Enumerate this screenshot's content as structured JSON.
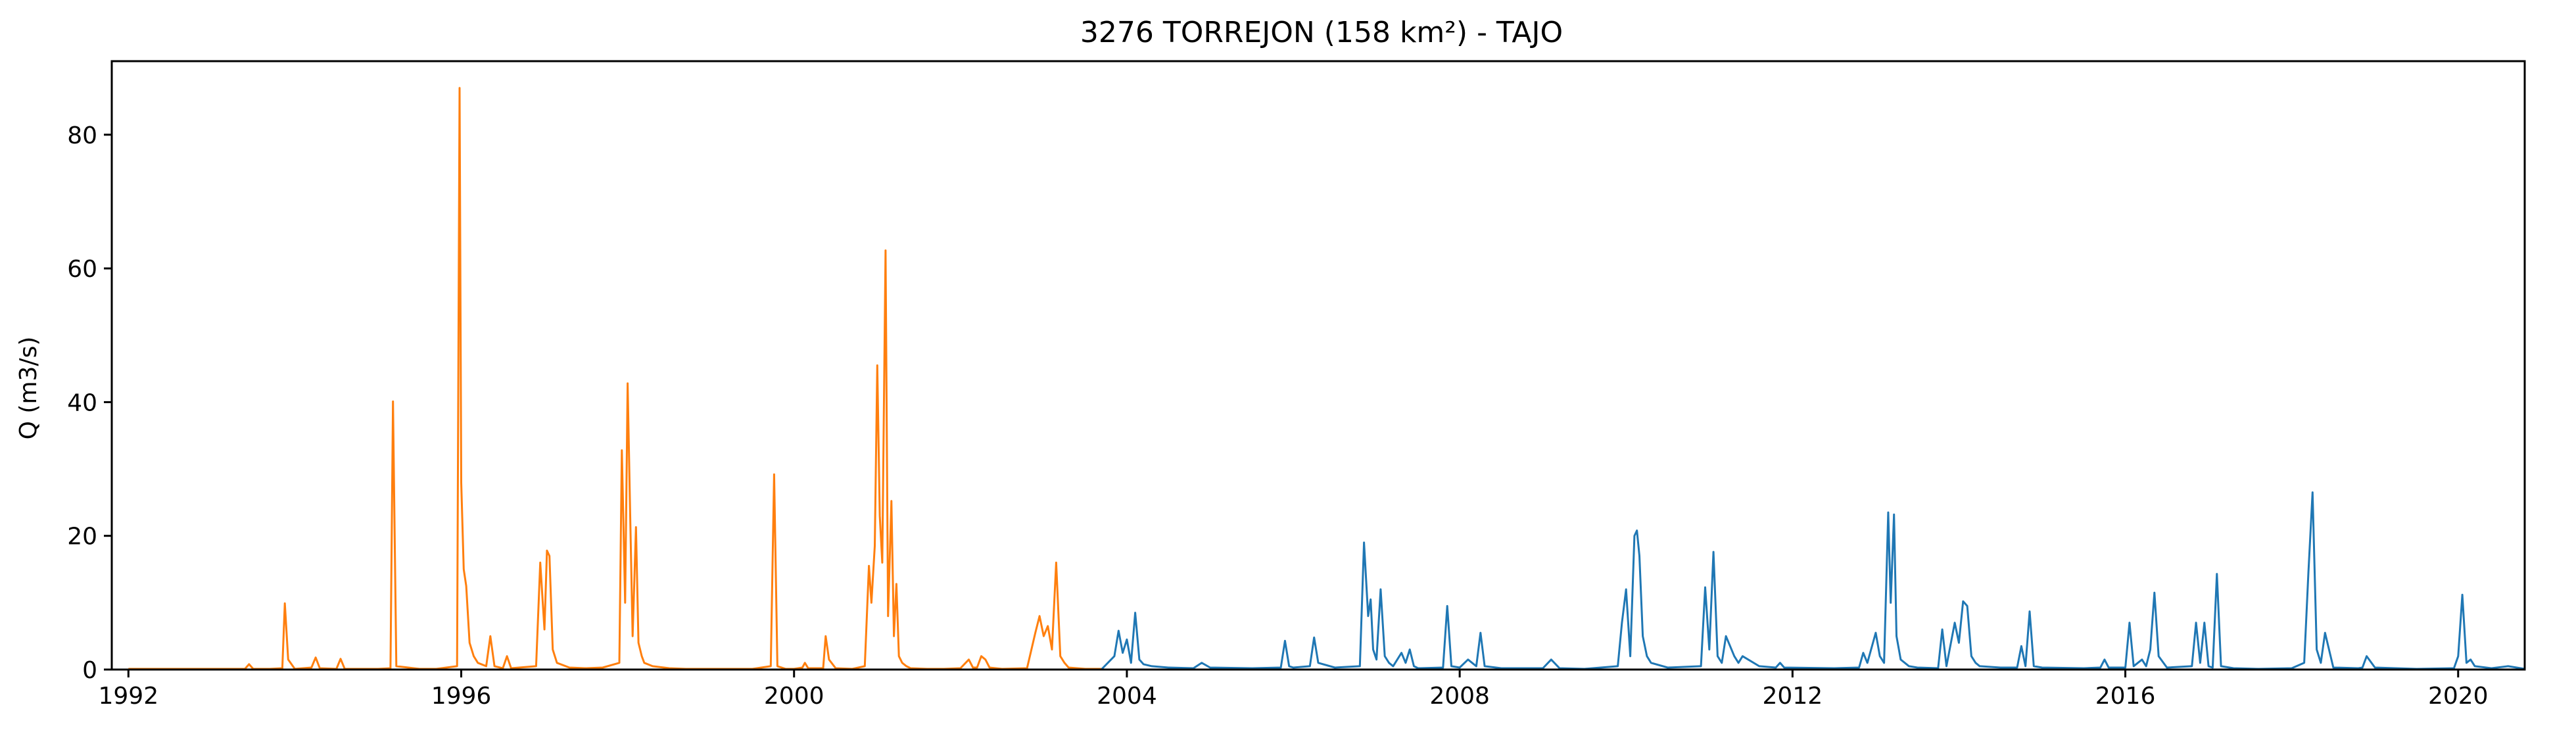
{
  "chart_data": {
    "type": "line",
    "title": "3276 TORREJON (158 km²) - TAJO",
    "xlabel": "",
    "ylabel": "Q (m3/s)",
    "xlim": [
      1991.8,
      2020.8
    ],
    "ylim": [
      0,
      91
    ],
    "xticks": [
      1992,
      1996,
      2000,
      2004,
      2008,
      2012,
      2016,
      2020
    ],
    "yticks": [
      0,
      20,
      40,
      60,
      80
    ],
    "grid": false,
    "legend": "none",
    "series": [
      {
        "color": "#ff7f0e",
        "x": [
          1992.0,
          1993.4,
          1993.45,
          1993.5,
          1993.7,
          1993.85,
          1993.88,
          1993.92,
          1994.0,
          1994.2,
          1994.25,
          1994.3,
          1994.5,
          1994.55,
          1994.6,
          1995.0,
          1995.15,
          1995.18,
          1995.22,
          1995.5,
          1995.7,
          1995.95,
          1995.98,
          1996.0,
          1996.03,
          1996.06,
          1996.1,
          1996.15,
          1996.2,
          1996.3,
          1996.35,
          1996.4,
          1996.5,
          1996.55,
          1996.6,
          1996.9,
          1996.95,
          1997.0,
          1997.03,
          1997.06,
          1997.1,
          1997.15,
          1997.3,
          1997.5,
          1997.7,
          1997.9,
          1997.93,
          1997.97,
          1998.0,
          1998.03,
          1998.06,
          1998.1,
          1998.13,
          1998.17,
          1998.2,
          1998.3,
          1998.5,
          1998.7,
          1999.0,
          1999.5,
          1999.72,
          1999.76,
          1999.8,
          1999.9,
          2000.0,
          2000.1,
          2000.13,
          2000.17,
          2000.35,
          2000.38,
          2000.42,
          2000.5,
          2000.7,
          2000.85,
          2000.9,
          2000.93,
          2000.97,
          2001.0,
          2001.03,
          2001.06,
          2001.1,
          2001.13,
          2001.17,
          2001.2,
          2001.23,
          2001.26,
          2001.3,
          2001.35,
          2001.4,
          2001.6,
          2001.8,
          2002.0,
          2002.1,
          2002.15,
          2002.2,
          2002.25,
          2002.3,
          2002.35,
          2002.5,
          2002.8,
          2002.9,
          2002.95,
          2003.0,
          2003.05,
          2003.1,
          2003.15,
          2003.2,
          2003.25,
          2003.3,
          2003.5,
          2003.7
        ],
        "values": [
          0.1,
          0.1,
          0.8,
          0.1,
          0.1,
          0.2,
          9.9,
          1.5,
          0.1,
          0.3,
          1.8,
          0.2,
          0.1,
          1.6,
          0.1,
          0.1,
          0.2,
          40.1,
          0.5,
          0.1,
          0.1,
          0.5,
          87.0,
          28.0,
          15.0,
          12.5,
          4.0,
          2.0,
          1.0,
          0.5,
          5.0,
          0.5,
          0.2,
          2.0,
          0.2,
          0.5,
          16.0,
          6.0,
          17.8,
          17.0,
          3.0,
          1.0,
          0.3,
          0.2,
          0.3,
          1.0,
          32.8,
          10.0,
          42.8,
          23.5,
          5.0,
          21.3,
          4.0,
          2.0,
          1.0,
          0.5,
          0.2,
          0.1,
          0.1,
          0.1,
          0.5,
          29.2,
          0.5,
          0.1,
          0.1,
          0.3,
          1.0,
          0.2,
          0.2,
          5.0,
          1.5,
          0.2,
          0.1,
          0.5,
          15.5,
          10.0,
          18.5,
          45.5,
          23.0,
          16.0,
          62.7,
          8.0,
          25.2,
          5.0,
          12.8,
          2.0,
          1.0,
          0.5,
          0.2,
          0.1,
          0.1,
          0.2,
          1.5,
          0.3,
          0.3,
          2.0,
          1.5,
          0.3,
          0.1,
          0.2,
          5.5,
          8.0,
          5.0,
          6.5,
          3.0,
          16.0,
          2.0,
          1.0,
          0.3,
          0.1,
          0.1
        ]
      },
      {
        "color": "#1f77b4",
        "x": [
          2003.7,
          2003.85,
          2003.9,
          2003.95,
          2004.0,
          2004.05,
          2004.1,
          2004.15,
          2004.2,
          2004.3,
          2004.5,
          2004.8,
          2004.9,
          2005.0,
          2005.5,
          2005.85,
          2005.9,
          2005.95,
          2006.0,
          2006.2,
          2006.25,
          2006.3,
          2006.5,
          2006.8,
          2006.85,
          2006.9,
          2006.93,
          2006.96,
          2007.0,
          2007.05,
          2007.1,
          2007.15,
          2007.2,
          2007.3,
          2007.35,
          2007.4,
          2007.45,
          2007.5,
          2007.8,
          2007.85,
          2007.9,
          2008.0,
          2008.1,
          2008.2,
          2008.25,
          2008.3,
          2008.5,
          2009.0,
          2009.1,
          2009.2,
          2009.5,
          2009.9,
          2009.95,
          2010.0,
          2010.05,
          2010.1,
          2010.13,
          2010.16,
          2010.2,
          2010.25,
          2010.3,
          2010.5,
          2010.9,
          2010.95,
          2011.0,
          2011.05,
          2011.1,
          2011.15,
          2011.2,
          2011.3,
          2011.35,
          2011.4,
          2011.6,
          2011.8,
          2011.85,
          2011.9,
          2012.5,
          2012.8,
          2012.85,
          2012.9,
          2013.0,
          2013.05,
          2013.1,
          2013.15,
          2013.18,
          2013.22,
          2013.25,
          2013.3,
          2013.4,
          2013.5,
          2013.75,
          2013.8,
          2013.85,
          2013.95,
          2014.0,
          2014.05,
          2014.1,
          2014.15,
          2014.2,
          2014.25,
          2014.5,
          2014.7,
          2014.75,
          2014.8,
          2014.85,
          2014.9,
          2015.0,
          2015.5,
          2015.7,
          2015.75,
          2015.8,
          2016.0,
          2016.05,
          2016.1,
          2016.2,
          2016.25,
          2016.3,
          2016.35,
          2016.4,
          2016.5,
          2016.8,
          2016.85,
          2016.9,
          2016.95,
          2017.0,
          2017.05,
          2017.1,
          2017.15,
          2017.3,
          2017.6,
          2018.0,
          2018.15,
          2018.2,
          2018.25,
          2018.3,
          2018.35,
          2018.4,
          2018.5,
          2018.8,
          2018.85,
          2018.9,
          2019.0,
          2019.5,
          2019.95,
          2020.0,
          2020.05,
          2020.1,
          2020.15,
          2020.2,
          2020.4,
          2020.6,
          2020.8
        ],
        "values": [
          0.1,
          2.0,
          5.8,
          2.5,
          4.5,
          1.0,
          8.5,
          1.5,
          0.8,
          0.5,
          0.3,
          0.2,
          1.0,
          0.3,
          0.2,
          0.3,
          4.3,
          0.5,
          0.3,
          0.5,
          4.8,
          1.0,
          0.3,
          0.5,
          19.0,
          8.0,
          10.5,
          3.0,
          1.5,
          12.0,
          2.0,
          1.0,
          0.5,
          2.5,
          1.0,
          3.0,
          0.5,
          0.2,
          0.3,
          9.5,
          0.5,
          0.3,
          1.5,
          0.5,
          5.5,
          0.5,
          0.2,
          0.2,
          1.5,
          0.2,
          0.1,
          0.5,
          7.0,
          12.0,
          2.0,
          20.0,
          20.8,
          17.0,
          5.0,
          2.0,
          1.0,
          0.3,
          0.5,
          12.3,
          3.0,
          17.6,
          2.0,
          1.0,
          5.0,
          2.0,
          1.0,
          2.0,
          0.5,
          0.3,
          1.0,
          0.3,
          0.2,
          0.3,
          2.5,
          1.0,
          5.5,
          2.0,
          1.0,
          23.5,
          10.0,
          23.2,
          5.0,
          1.5,
          0.5,
          0.3,
          0.2,
          6.0,
          0.5,
          7.0,
          4.0,
          10.2,
          9.5,
          2.0,
          1.0,
          0.5,
          0.3,
          0.3,
          3.5,
          0.5,
          8.7,
          0.5,
          0.3,
          0.2,
          0.3,
          1.5,
          0.3,
          0.3,
          7.0,
          0.5,
          1.5,
          0.5,
          3.0,
          11.5,
          2.0,
          0.3,
          0.5,
          7.0,
          1.0,
          7.0,
          0.5,
          0.3,
          14.3,
          0.5,
          0.2,
          0.1,
          0.2,
          1.0,
          14.5,
          26.5,
          3.0,
          1.0,
          5.5,
          0.3,
          0.2,
          0.3,
          2.0,
          0.3,
          0.1,
          0.2,
          2.0,
          11.2,
          1.0,
          1.5,
          0.5,
          0.2,
          0.5,
          0.1
        ]
      }
    ]
  }
}
